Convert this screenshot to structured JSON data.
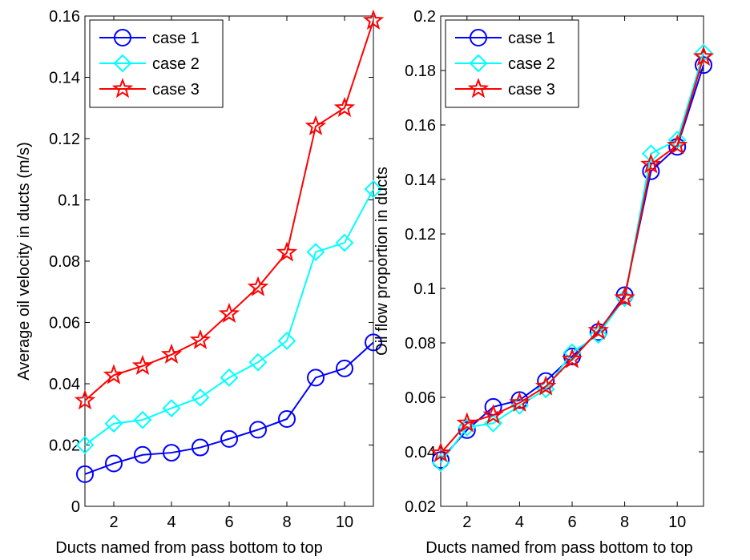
{
  "colors": {
    "case_1": "#0000ff",
    "case_2": "#00ffff",
    "case_3": "#ff0000",
    "axes": "#000000",
    "background": "#ffffff"
  },
  "chart_data": [
    {
      "type": "line",
      "title": "",
      "xlabel": "Ducts named from pass bottom to top",
      "ylabel": "Average oil velocity in ducts (m/s)",
      "xlim": [
        1,
        11
      ],
      "ylim": [
        0,
        0.16
      ],
      "xticks": [
        2,
        4,
        6,
        8,
        10
      ],
      "xtick_labels": [
        "2",
        "4",
        "6",
        "8",
        "10"
      ],
      "yticks": [
        0,
        0.02,
        0.04,
        0.06,
        0.08,
        0.1,
        0.12,
        0.14,
        0.16
      ],
      "ytick_labels": [
        "0",
        "0.02",
        "0.04",
        "0.06",
        "0.08",
        "0.1",
        "0.12",
        "0.14",
        "0.16"
      ],
      "grid": false,
      "legend": {
        "placement": "top-left"
      },
      "x": [
        1,
        2,
        3,
        4,
        5,
        6,
        7,
        8,
        9,
        10,
        11
      ],
      "series": [
        {
          "name": "case 1",
          "marker": "circle",
          "color": "#0000ff",
          "values": [
            0.0105,
            0.014,
            0.0168,
            0.0175,
            0.0192,
            0.022,
            0.025,
            0.0285,
            0.042,
            0.045,
            0.0535
          ]
        },
        {
          "name": "case 2",
          "marker": "diamond",
          "color": "#00ffff",
          "values": [
            0.02,
            0.027,
            0.0282,
            0.032,
            0.0355,
            0.042,
            0.047,
            0.054,
            0.083,
            0.086,
            0.1035
          ]
        },
        {
          "name": "case 3",
          "marker": "star",
          "color": "#ff0000",
          "values": [
            0.0345,
            0.0428,
            0.0458,
            0.0495,
            0.0542,
            0.0628,
            0.0715,
            0.0828,
            0.124,
            0.13,
            0.1585
          ]
        }
      ]
    },
    {
      "type": "line",
      "title": "",
      "xlabel": "Ducts named from pass bottom to top",
      "ylabel": "Oil flow proportion in ducts",
      "xlim": [
        1,
        11
      ],
      "ylim": [
        0.02,
        0.2
      ],
      "xticks": [
        2,
        4,
        6,
        8,
        10
      ],
      "xtick_labels": [
        "2",
        "4",
        "6",
        "8",
        "10"
      ],
      "yticks": [
        0.02,
        0.04,
        0.06,
        0.08,
        0.1,
        0.12,
        0.14,
        0.16,
        0.18,
        0.2
      ],
      "ytick_labels": [
        "0.02",
        "0.04",
        "0.06",
        "0.08",
        "0.1",
        "0.12",
        "0.14",
        "0.16",
        "0.18",
        "0.2"
      ],
      "grid": false,
      "legend": {
        "placement": "top-left"
      },
      "x": [
        1,
        2,
        3,
        4,
        5,
        6,
        7,
        8,
        9,
        10,
        11
      ],
      "series": [
        {
          "name": "case 1",
          "marker": "circle",
          "color": "#0000ff",
          "values": [
            0.037,
            0.048,
            0.0565,
            0.059,
            0.066,
            0.075,
            0.084,
            0.0975,
            0.143,
            0.152,
            0.182
          ]
        },
        {
          "name": "case 2",
          "marker": "diamond",
          "color": "#00ffff",
          "values": [
            0.036,
            0.049,
            0.0505,
            0.057,
            0.063,
            0.0765,
            0.083,
            0.0965,
            0.1495,
            0.1545,
            0.1865
          ]
        },
        {
          "name": "case 3",
          "marker": "star",
          "color": "#ff0000",
          "values": [
            0.0395,
            0.0505,
            0.0535,
            0.058,
            0.064,
            0.074,
            0.0845,
            0.0965,
            0.1455,
            0.1525,
            0.185
          ]
        }
      ]
    }
  ]
}
